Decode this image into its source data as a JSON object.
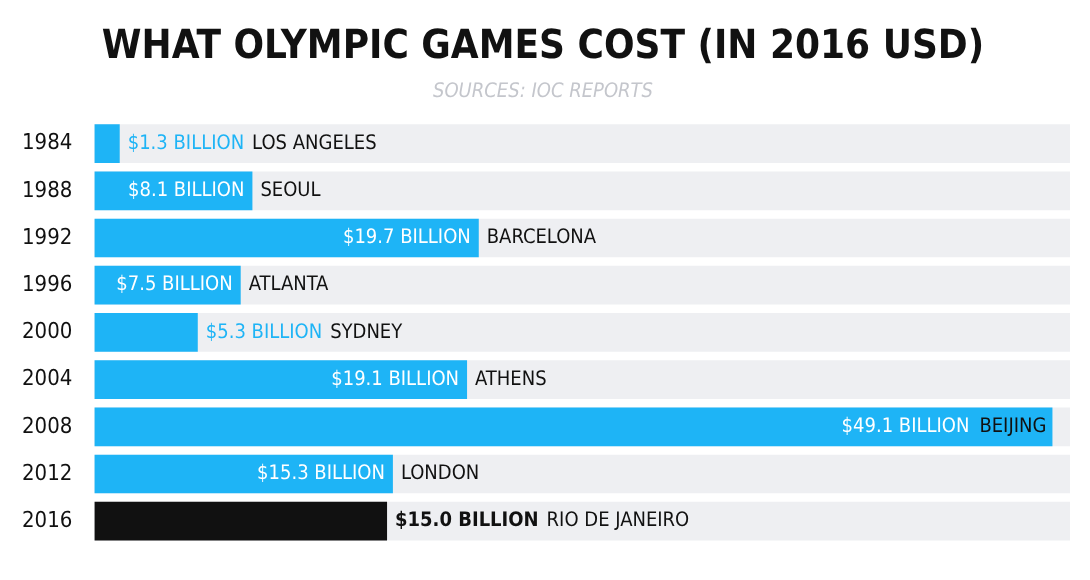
{
  "chart_data": {
    "type": "bar",
    "orientation": "horizontal",
    "title": "WHAT OLYMPIC GAMES COST (IN 2016 USD)",
    "subtitle": "SOURCES: IOC REPORTS",
    "categories": [
      "1984",
      "1988",
      "1992",
      "1996",
      "2000",
      "2004",
      "2008",
      "2012",
      "2016"
    ],
    "values": [
      1.3,
      8.1,
      19.7,
      7.5,
      5.3,
      19.1,
      49.1,
      15.3,
      15.0
    ],
    "colors": [
      "#1eb4f6",
      "#1eb4f6",
      "#1eb4f6",
      "#1eb4f6",
      "#1eb4f6",
      "#1eb4f6",
      "#1eb4f6",
      "#1eb4f6",
      "#111111"
    ],
    "value_labels": [
      "$1.3 BILLION",
      "$8.1 BILLION",
      "$19.7 BILLION",
      "$7.5 BILLION",
      "$5.3 BILLION",
      "$19.1 BILLION",
      "$49.1 BILLION",
      "$15.3 BILLION",
      "$15.0 BILLION"
    ],
    "annotations": [
      "LOS ANGELES",
      "SEOUL",
      "BARCELONA",
      "ATLANTA",
      "SYDNEY",
      "ATHENS",
      "BEIJING",
      "LONDON",
      "RIO DE JANEIRO"
    ],
    "legend": false
  }
}
